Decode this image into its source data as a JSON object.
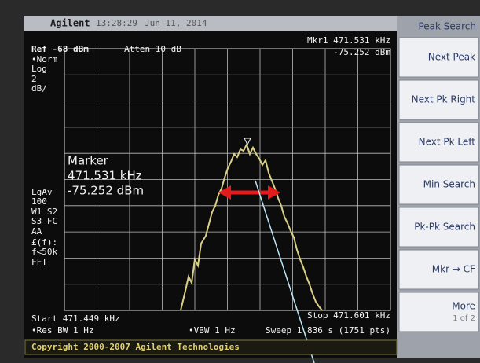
{
  "header": {
    "brand": "Agilent",
    "time": "13:28:29",
    "date": "Jun 11, 2014",
    "menu_title": "Peak Search"
  },
  "top": {
    "ref": "Ref -68 dBm",
    "atten": "Atten 10 dB",
    "marker_freq": "Mkr1 471.531 kHz",
    "marker_level": "-75.252 dBm"
  },
  "side_labels": [
    "•Norm",
    "Log",
    "2",
    "dB/",
    "LgAv",
    "100",
    "W1 S2",
    "S3 FC",
    "AA",
    "£(f):",
    "f<50k",
    "FFT"
  ],
  "marker_box": {
    "title": "Marker",
    "freq": "471.531 kHz",
    "level": "-75.252 dBm"
  },
  "bottom": {
    "start": "Start 471.449 kHz",
    "stop": "Stop 471.601 kHz",
    "rbw": "•Res BW 1 Hz",
    "vbw": "•VBW 1 Hz",
    "sweep": "Sweep 1.836 s (1751 pts)"
  },
  "footer": "Copyright 2000-2007 Agilent Technologies",
  "softkeys": [
    "Next Peak",
    "Next Pk Right",
    "Next Pk Left",
    "Min Search",
    "Pk-Pk Search",
    "Mkr → CF",
    "More"
  ],
  "softkey_sub": "1 of 2"
}
